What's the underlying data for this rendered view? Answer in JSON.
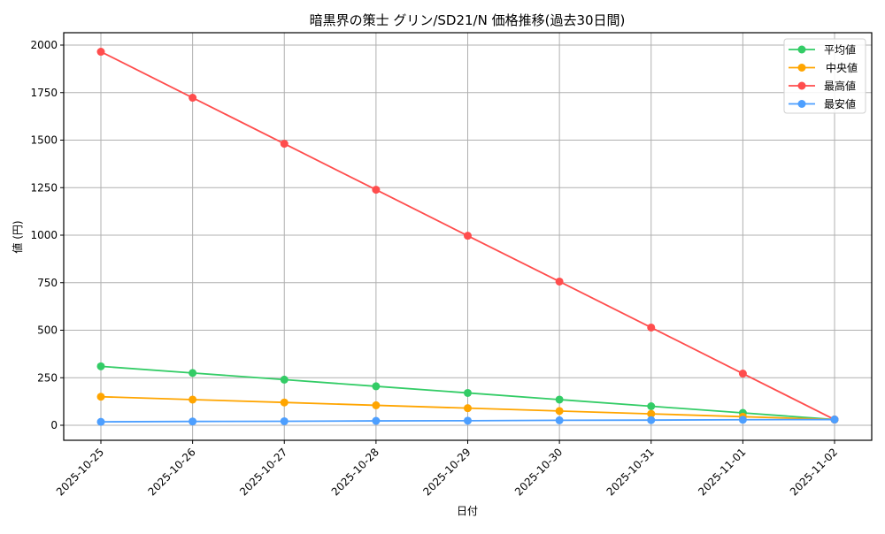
{
  "chart_data": {
    "type": "line",
    "title": "暗黒界の策士 グリン/SD21/N 価格推移(過去30日間)",
    "xlabel": "日付",
    "ylabel": "値 (円)",
    "categories": [
      "2025-10-25",
      "2025-10-26",
      "2025-10-27",
      "2025-10-28",
      "2025-10-29",
      "2025-10-30",
      "2025-10-31",
      "2025-11-01",
      "2025-11-02"
    ],
    "series": [
      {
        "name": "平均値",
        "color": "#33cc66",
        "values": [
          310,
          275,
          240,
          205,
          170,
          135,
          100,
          65,
          30
        ]
      },
      {
        "name": "中央値",
        "color": "#ffa500",
        "values": [
          150,
          135,
          120,
          105,
          90,
          75,
          60,
          45,
          30
        ]
      },
      {
        "name": "最高値",
        "color": "#ff4d4d",
        "values": [
          1965,
          1723,
          1481,
          1239,
          997,
          756,
          514,
          272,
          30
        ]
      },
      {
        "name": "最安値",
        "color": "#4d9fff",
        "values": [
          18,
          20,
          21,
          23,
          24,
          26,
          27,
          29,
          30
        ]
      }
    ],
    "yticks": [
      0,
      250,
      500,
      750,
      1000,
      1250,
      1500,
      1750,
      2000
    ],
    "ylim": [
      -75,
      2065
    ],
    "grid": true,
    "legend_position": "upper right",
    "marker": "circle",
    "xtick_rotation": 45
  }
}
